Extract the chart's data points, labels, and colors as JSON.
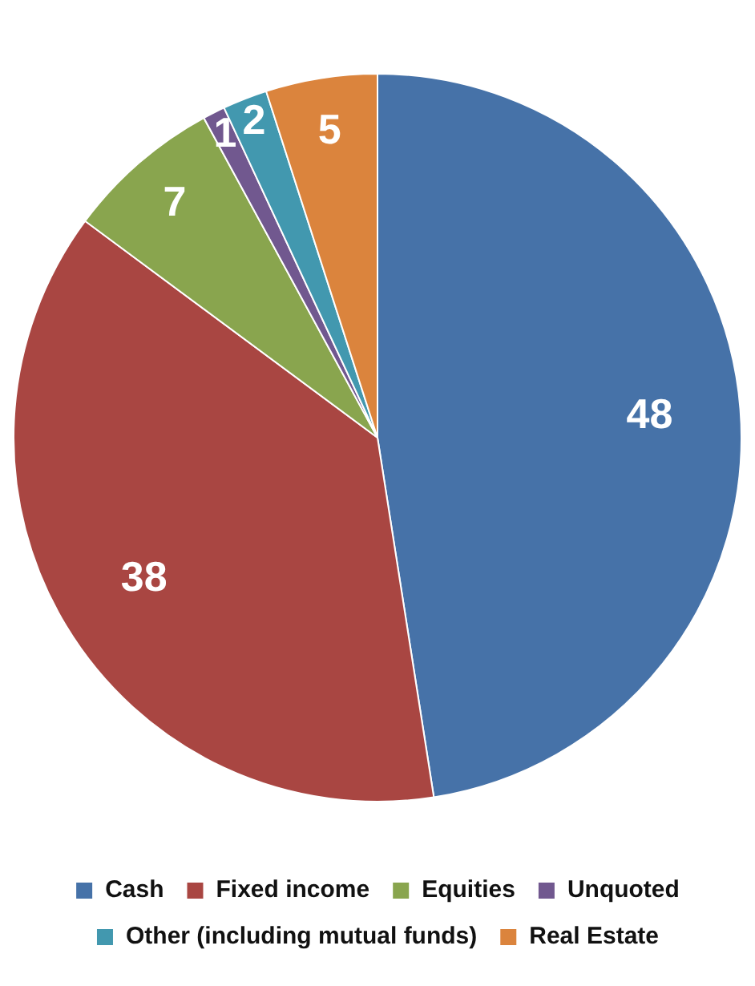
{
  "chart_data": {
    "type": "pie",
    "categories": [
      "Cash",
      "Fixed income",
      "Equities",
      "Unquoted",
      "Other (including mutual funds)",
      "Real Estate"
    ],
    "values": [
      48,
      38,
      7,
      1,
      2,
      5
    ],
    "colors": [
      "#4672a8",
      "#a94642",
      "#89a54e",
      "#71588f",
      "#4298af",
      "#db843d"
    ],
    "data_labels": true,
    "legend": "bottom"
  }
}
